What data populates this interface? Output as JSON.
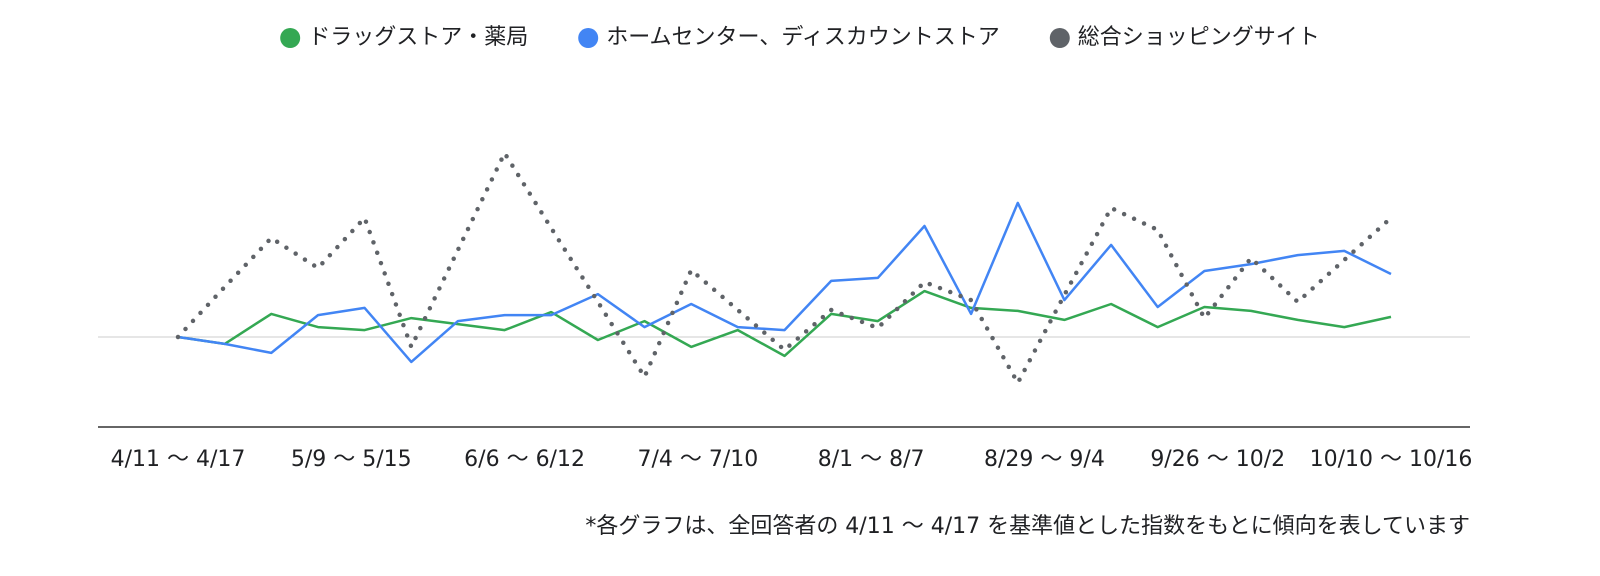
{
  "chart_data": {
    "type": "line",
    "categories": [
      "4/11 〜 4/17",
      null,
      null,
      null,
      "5/9 〜 5/15",
      null,
      null,
      null,
      "6/6 〜 6/12",
      null,
      null,
      null,
      "7/4 〜 7/10",
      null,
      null,
      null,
      "8/1 〜 8/7",
      null,
      null,
      null,
      "8/29 〜 9/4",
      null,
      null,
      null,
      "9/26 〜 10/2",
      null,
      "10/10 〜 10/16"
    ],
    "series": [
      {
        "name": "ドラッグストア・薬局",
        "color": "#34a853",
        "style": "solid",
        "values": [
          100,
          97.7,
          107.7,
          103.3,
          102.3,
          106.3,
          104.3,
          102.3,
          108.3,
          99,
          105.3,
          96.7,
          102.3,
          93.7,
          107.7,
          105.3,
          115.3,
          109.7,
          108.7,
          105.7,
          111,
          103.3,
          110,
          108.7,
          105.7,
          103.3,
          106.7
        ]
      },
      {
        "name": "ホームセンター、ディスカウントストア",
        "color": "#4285f4",
        "style": "solid",
        "values": [
          100,
          97.7,
          94.7,
          107.3,
          109.7,
          91.7,
          105.3,
          107.3,
          107.3,
          114.3,
          103.3,
          111,
          103.3,
          102.3,
          118.7,
          119.7,
          137,
          107.7,
          144.7,
          112.3,
          130.7,
          110,
          122,
          124.3,
          127.3,
          128.7,
          121
        ]
      },
      {
        "name": "総合ショッピングサイト",
        "color": "#5f6368",
        "style": "dotted",
        "values": [
          100,
          116.7,
          133,
          123,
          139.7,
          96.7,
          129,
          161.3,
          136.3,
          111.7,
          86.7,
          122.3,
          109,
          95.7,
          109,
          103,
          118.3,
          112.3,
          84.7,
          114,
          143,
          135.7,
          106.3,
          126.3,
          111.7,
          125.7,
          139.7
        ]
      }
    ],
    "ylim": [
      70,
      170
    ],
    "baseline": 100,
    "legend": "top",
    "note": "*各グラフは、全回答者の 4/11 〜 4/17 を基準値とした指数をもとに傾向を表しています"
  }
}
